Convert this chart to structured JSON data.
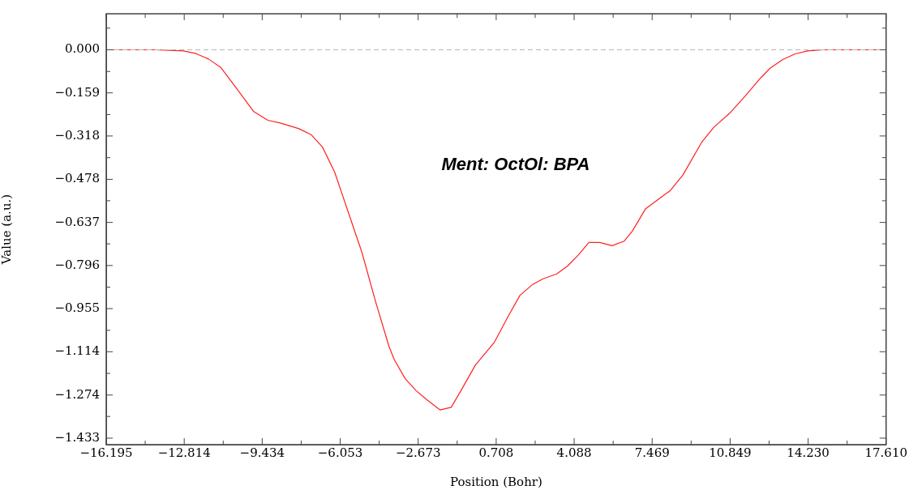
{
  "chart_data": {
    "type": "line",
    "xlabel": "Position (Bohr)",
    "ylabel": "Value (a.u.)",
    "annotations": [
      "Ment: OctOl: BPA"
    ],
    "xlim": [
      -16.195,
      17.61
    ],
    "ylim": [
      -1.457,
      0.133
    ],
    "xticks": [
      -16.195,
      {
        "value": -14.505,
        "label": null
      },
      -12.814,
      {
        "value": -11.124,
        "label": null
      },
      -9.434,
      {
        "value": -7.744,
        "label": null
      },
      -6.053,
      {
        "value": -4.363,
        "label": null
      },
      -2.673,
      {
        "value": -0.983,
        "label": null
      },
      0.708,
      {
        "value": 2.398,
        "label": null
      },
      4.088,
      {
        "value": 5.779,
        "label": null
      },
      7.469,
      {
        "value": 9.159,
        "label": null
      },
      10.849,
      {
        "value": 12.54,
        "label": null
      },
      {
        "value": 14.23,
        "label": "14.230"
      },
      {
        "value": 15.92,
        "label": null
      },
      {
        "value": 17.61,
        "label": "17.610"
      }
    ],
    "yticks": [
      {
        "value": 0.08,
        "label": null
      },
      {
        "value": 0,
        "label": "0.000"
      },
      {
        "value": -0.08,
        "label": null
      },
      -0.159,
      {
        "value": -0.239,
        "label": null
      },
      -0.318,
      {
        "value": -0.398,
        "label": null
      },
      -0.478,
      {
        "value": -0.557,
        "label": null
      },
      -0.637,
      {
        "value": -0.716,
        "label": null
      },
      -0.796,
      {
        "value": -0.876,
        "label": null
      },
      -0.955,
      {
        "value": -1.035,
        "label": null
      },
      -1.114,
      {
        "value": -1.194,
        "label": null
      },
      -1.274,
      {
        "value": -1.353,
        "label": null
      },
      -1.433
    ],
    "grid": false,
    "marker": "none",
    "line_style": "solid",
    "ref_lines": [
      {
        "axis": "y",
        "value": 0,
        "color": "#b4b4b4",
        "line_style": "dashed"
      }
    ],
    "series": [
      {
        "color": "#ff2020",
        "x": [
          -16.195,
          -14.07,
          -12.84,
          -12.3,
          -11.76,
          -11.22,
          -10.54,
          -9.8,
          -9.19,
          -8.65,
          -7.84,
          -7.3,
          -6.82,
          -6.29,
          -5.7,
          -5.11,
          -4.53,
          -3.94,
          -3.71,
          -3.24,
          -2.77,
          -2.3,
          -1.72,
          -1.24,
          -0.78,
          -0.19,
          0.63,
          1.22,
          1.74,
          2.27,
          2.74,
          3.33,
          3.8,
          4.26,
          4.73,
          5.2,
          5.73,
          6.26,
          6.61,
          7.18,
          7.99,
          8.26,
          8.8,
          9.61,
          10.15,
          10.83,
          11.5,
          12.18,
          12.58,
          13.13,
          13.67,
          14.21,
          14.89,
          17.61
        ],
        "values": [
          0,
          0,
          -0.004,
          -0.014,
          -0.034,
          -0.066,
          -0.143,
          -0.228,
          -0.26,
          -0.27,
          -0.291,
          -0.314,
          -0.359,
          -0.452,
          -0.6,
          -0.748,
          -0.926,
          -1.094,
          -1.143,
          -1.213,
          -1.257,
          -1.291,
          -1.329,
          -1.319,
          -1.252,
          -1.163,
          -1.079,
          -0.985,
          -0.906,
          -0.867,
          -0.845,
          -0.827,
          -0.798,
          -0.758,
          -0.711,
          -0.711,
          -0.723,
          -0.706,
          -0.669,
          -0.587,
          -0.536,
          -0.519,
          -0.462,
          -0.342,
          -0.285,
          -0.234,
          -0.171,
          -0.103,
          -0.068,
          -0.036,
          -0.015,
          -0.004,
          0,
          0
        ]
      }
    ]
  }
}
